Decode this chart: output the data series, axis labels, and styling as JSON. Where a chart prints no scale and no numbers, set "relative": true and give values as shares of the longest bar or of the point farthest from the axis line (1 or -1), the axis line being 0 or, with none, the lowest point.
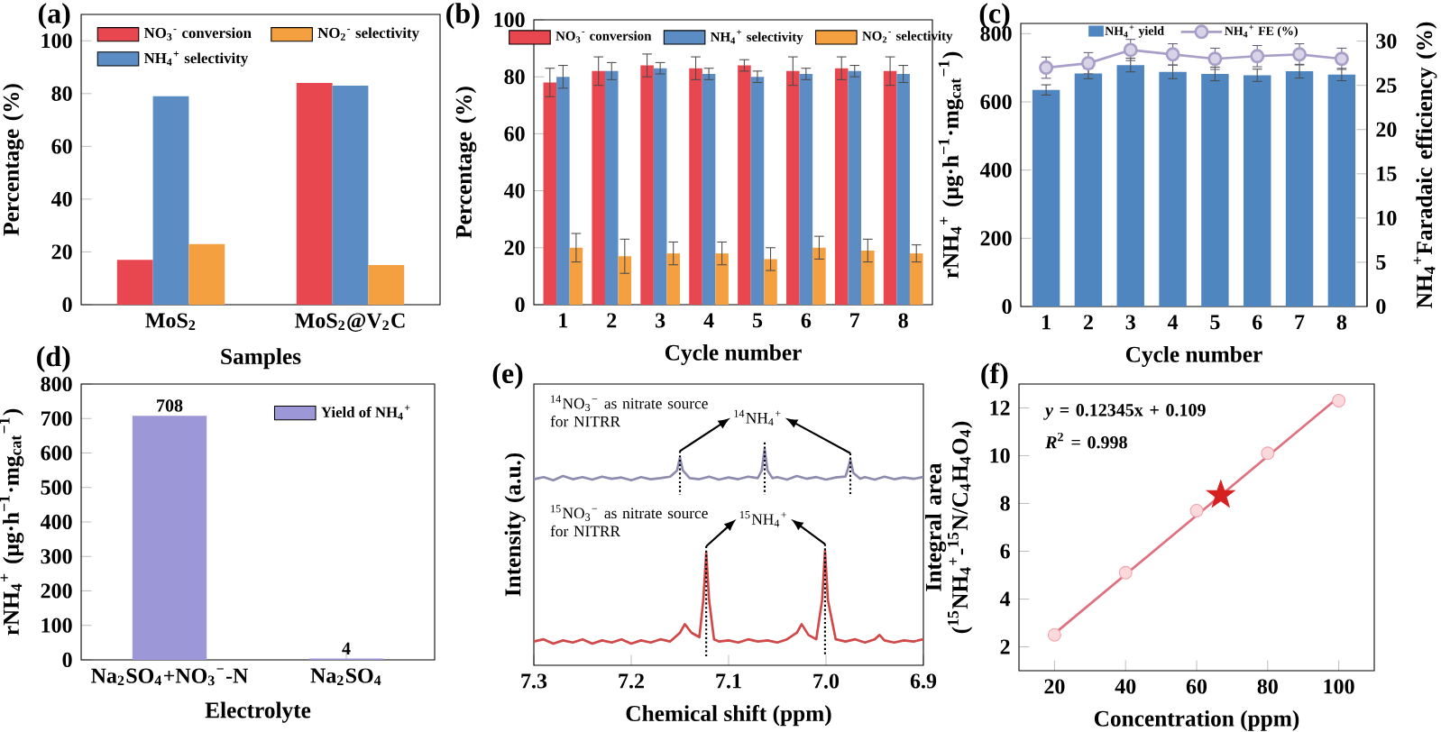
{
  "chart_data": [
    {
      "type": "bar",
      "title": "(a)",
      "xlabel": "Samples",
      "ylabel": "Percentage (%)",
      "categories": [
        "MoS$_{2}$",
        "MoS$_{2}$@V$_{2}$C"
      ],
      "ylim": [
        0,
        110
      ],
      "yticks": [
        0,
        20,
        40,
        60,
        80,
        100
      ],
      "legend": "top",
      "series": [
        {
          "name": "NO$_{3}$$^{-}$ conversion",
          "color": "#e8474f",
          "values": [
            17,
            84
          ]
        },
        {
          "name": "NH$_{4}$$^{+}$ selectivity",
          "color": "#5b8cc4",
          "values": [
            79,
            83
          ]
        },
        {
          "name": "NO$_{2}$$^{-}$ selectivity",
          "color": "#f5a040",
          "values": [
            23,
            15
          ]
        }
      ]
    },
    {
      "type": "bar",
      "title": "(b)",
      "xlabel": "Cycle number",
      "ylabel": "Percentage (%)",
      "categories": [
        "1",
        "2",
        "3",
        "4",
        "5",
        "6",
        "7",
        "8"
      ],
      "ylim": [
        0,
        100
      ],
      "yticks": [
        0,
        20,
        40,
        60,
        80,
        100
      ],
      "legend": "top",
      "series": [
        {
          "name": "NO$_{3}$$^{-}$ conversion",
          "color": "#e8474f",
          "values": [
            78,
            82,
            84,
            83,
            84,
            82,
            83,
            82
          ],
          "errors": [
            5,
            5,
            4,
            4,
            2,
            5,
            4,
            5
          ]
        },
        {
          "name": "NH$_{4}$$^{+}$ selectivity",
          "color": "#5b8cc4",
          "values": [
            80,
            82,
            83,
            81,
            80,
            81,
            82,
            81
          ],
          "errors": [
            4,
            3,
            2,
            2,
            2,
            2,
            2,
            3
          ]
        },
        {
          "name": "NO$_{2}$$^{-}$ selectivity",
          "color": "#f5a040",
          "values": [
            20,
            17,
            18,
            18,
            16,
            20,
            19,
            18
          ],
          "errors": [
            5,
            6,
            4,
            4,
            4,
            4,
            4,
            3
          ]
        }
      ]
    },
    {
      "type": "bar",
      "title": "(c)",
      "xlabel": "Cycle number",
      "ylabel": "rNH$_{4}$$^{+}$ (μg·h$^{−1}$·mg$_{cat}$$^{−1}$)",
      "y2label": "NH$_{4}$$^{+}$Faradaic efficiency (%)",
      "categories": [
        "1",
        "2",
        "3",
        "4",
        "5",
        "6",
        "7",
        "8"
      ],
      "ylim": [
        0,
        830
      ],
      "yticks": [
        0,
        200,
        400,
        600,
        800
      ],
      "y2lim": [
        0,
        32
      ],
      "y2ticks": [
        0,
        5,
        10,
        15,
        20,
        25,
        30
      ],
      "legend": "top",
      "series": [
        {
          "name": "NH$_{4}$$^{+}$ yield",
          "color": "#4f86c0",
          "values": [
            635,
            683,
            708,
            688,
            682,
            678,
            690,
            680
          ],
          "errors": [
            15,
            15,
            20,
            20,
            20,
            18,
            20,
            18
          ]
        },
        {
          "name": "NH$_{4}$$^{+}$ FE (%)",
          "type": "line",
          "axis": "y2",
          "marker": "circle",
          "color": "#a89ec8",
          "values": [
            27,
            27.5,
            29,
            28.5,
            28,
            28.3,
            28.5,
            28
          ],
          "errors": [
            1.2,
            1.2,
            1.2,
            1.2,
            1.2,
            1.2,
            1.2,
            1.2
          ]
        }
      ]
    },
    {
      "type": "bar",
      "title": "(d)",
      "xlabel": "Electrolyte",
      "ylabel": "rNH$_{4}$$^{+}$ (μg·h$^{−1}$·mg$_{cat}$$^{−1}$)",
      "categories": [
        "Na$_{2}$SO$_{4}$+NO$_{3}$$^{−}$-N",
        "Na$_{2}$SO$_{4}$"
      ],
      "ylim": [
        0,
        800
      ],
      "yticks": [
        0,
        100,
        200,
        300,
        400,
        500,
        600,
        700,
        800
      ],
      "legend": "top right",
      "data_labels": true,
      "series": [
        {
          "name": "Yield of NH$_{4}$$^{+}$",
          "color": "#9c98d8",
          "values": [
            708,
            4
          ]
        }
      ]
    },
    {
      "type": "line",
      "title": "(e)",
      "xlabel": "Chemical shift (ppm)",
      "ylabel": "Intensity (a.u.)",
      "relative": true,
      "xlim": [
        7.3,
        6.9
      ],
      "xticks": [
        7.3,
        7.2,
        7.1,
        {
          "value": 7,
          "label": "7.0"
        },
        6.9
      ],
      "annotations": [
        "$^{14}$NO$_{3}$$^{−}$ as nitrate source for NITRR",
        "$^{15}$NO$_{3}$$^{−}$ as nitrate source for NITRR",
        "$^{14}$NH$_{4}$$^{+}$",
        "$^{15}$NH$_{4}$$^{+}$"
      ],
      "series": [
        {
          "color": "#8e8cae",
          "x": [
            7.3,
            7.29,
            7.28,
            7.27,
            7.26,
            7.25,
            7.24,
            7.23,
            7.22,
            7.21,
            7.2,
            7.19,
            7.18,
            7.17,
            7.16,
            7.153,
            7.15,
            7.147,
            7.14,
            7.13,
            7.12,
            7.11,
            7.1,
            7.09,
            7.08,
            7.07,
            7.066,
            7.063,
            7.06,
            7.055,
            7.05,
            7.04,
            7.03,
            7.02,
            7.01,
            7.0,
            6.99,
            6.98,
            6.978,
            6.975,
            6.972,
            6.965,
            6.96,
            6.95,
            6.94,
            6.93,
            6.92,
            6.91,
            6.9
          ],
          "values": [
            0.86,
            0.87,
            0.855,
            0.875,
            0.86,
            0.87,
            0.858,
            0.872,
            0.862,
            0.868,
            0.855,
            0.87,
            0.86,
            0.865,
            0.872,
            0.9,
            0.96,
            0.9,
            0.865,
            0.86,
            0.872,
            0.858,
            0.868,
            0.86,
            0.872,
            0.865,
            0.9,
            1.0,
            0.9,
            0.865,
            0.87,
            0.858,
            0.875,
            0.862,
            0.87,
            0.858,
            0.868,
            0.872,
            0.9,
            0.95,
            0.89,
            0.862,
            0.87,
            0.858,
            0.872,
            0.86,
            0.868,
            0.862,
            0.87
          ]
        },
        {
          "color": "#d04848",
          "x": [
            7.3,
            7.29,
            7.28,
            7.27,
            7.26,
            7.25,
            7.24,
            7.23,
            7.22,
            7.21,
            7.2,
            7.19,
            7.18,
            7.17,
            7.16,
            7.15,
            7.145,
            7.138,
            7.13,
            7.126,
            7.123,
            7.12,
            7.115,
            7.11,
            7.1,
            7.09,
            7.08,
            7.07,
            7.06,
            7.05,
            7.04,
            7.03,
            7.025,
            7.018,
            7.01,
            7.004,
            7.001,
            6.998,
            6.99,
            6.98,
            6.97,
            6.96,
            6.95,
            6.945,
            6.94,
            6.93,
            6.92,
            6.91,
            6.9
          ],
          "values": [
            0.11,
            0.12,
            0.1,
            0.115,
            0.105,
            0.12,
            0.1,
            0.115,
            0.105,
            0.12,
            0.1,
            0.115,
            0.105,
            0.12,
            0.11,
            0.15,
            0.19,
            0.15,
            0.13,
            0.3,
            0.52,
            0.3,
            0.12,
            0.11,
            0.115,
            0.105,
            0.12,
            0.11,
            0.115,
            0.105,
            0.12,
            0.15,
            0.19,
            0.14,
            0.12,
            0.3,
            0.53,
            0.3,
            0.12,
            0.11,
            0.12,
            0.105,
            0.12,
            0.14,
            0.115,
            0.105,
            0.115,
            0.11,
            0.12
          ]
        }
      ]
    },
    {
      "type": "scatter",
      "title": "(f)",
      "xlabel": "Concentration (ppm)",
      "ylabel": "Integral area ($^{15}$NH$_{4}$$^{+}$-$^{15}$N/C$_{4}$H$_{4}$O$_{4}$)",
      "xlim": [
        10,
        110
      ],
      "ylim": [
        1,
        13
      ],
      "xticks": [
        20,
        40,
        60,
        80,
        100
      ],
      "yticks": [
        2,
        4,
        6,
        8,
        10,
        12
      ],
      "marker": "circle",
      "annotations": [
        "*y* = 0.12345x + 0.109",
        "*R*$^{2}$ = 0.998"
      ],
      "series": [
        {
          "color": "#f2a0a8",
          "x": [
            20,
            40,
            60,
            80,
            100
          ],
          "values": [
            2.5,
            5.1,
            7.7,
            10.1,
            12.3
          ]
        },
        {
          "type": "line",
          "color": "#e07080",
          "marker": "none",
          "x": [
            20,
            100
          ],
          "values": [
            2.55,
            12.45
          ]
        },
        {
          "color": "#d62020",
          "marker": "star",
          "x": [
            66.8
          ],
          "values": [
            8.35
          ]
        }
      ]
    }
  ]
}
